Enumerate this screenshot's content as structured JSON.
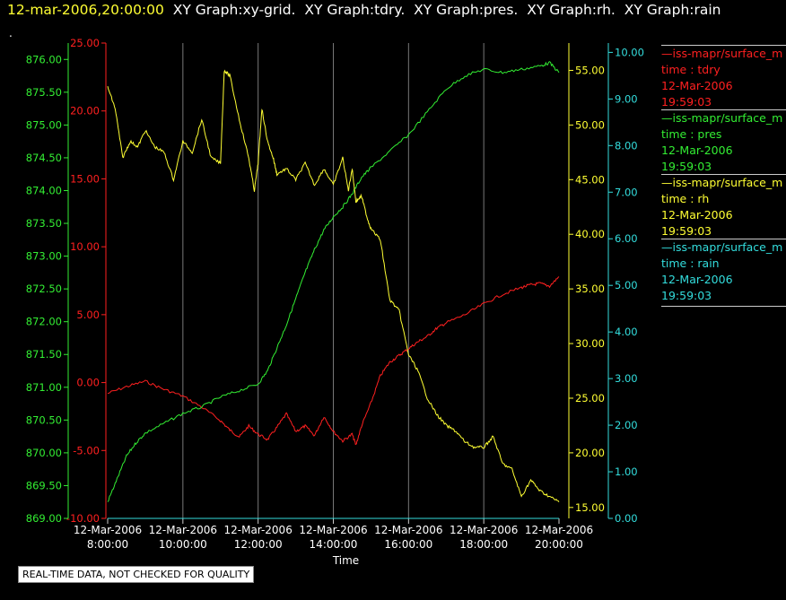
{
  "header": {
    "timestamp": "12-mar-2006,20:00:00",
    "titles": [
      "XY Graph:xy-grid.",
      "XY Graph:tdry.",
      "XY Graph:pres.",
      "XY Graph:rh.",
      "XY Graph:rain"
    ]
  },
  "dot": ".",
  "footer_note": "REAL-TIME DATA, NOT CHECKED FOR QUALITY",
  "legend": [
    {
      "source": "—iss-mapr/surface_m",
      "var": "time : tdry",
      "date": "12-Mar-2006",
      "time": "19:59:03",
      "color": "#ff2020"
    },
    {
      "source": "—iss-mapr/surface_m",
      "var": "time : pres",
      "date": "12-Mar-2006",
      "time": "19:59:03",
      "color": "#33ee33"
    },
    {
      "source": "—iss-mapr/surface_m",
      "var": "time : rh",
      "date": "12-Mar-2006",
      "time": "19:59:03",
      "color": "#ffff33"
    },
    {
      "source": "—iss-mapr/surface_m",
      "var": "time : rain",
      "date": "12-Mar-2006",
      "time": "19:59:03",
      "color": "#33dddd"
    }
  ],
  "chart_data": {
    "type": "line",
    "xlabel": "Time",
    "x_ticks": [
      {
        "date": "12-Mar-2006",
        "time": "8:00:00",
        "h": 8
      },
      {
        "date": "12-Mar-2006",
        "time": "10:00:00",
        "h": 10
      },
      {
        "date": "12-Mar-2006",
        "time": "12:00:00",
        "h": 12
      },
      {
        "date": "12-Mar-2006",
        "time": "14:00:00",
        "h": 14
      },
      {
        "date": "12-Mar-2006",
        "time": "16:00:00",
        "h": 16
      },
      {
        "date": "12-Mar-2006",
        "time": "18:00:00",
        "h": 18
      },
      {
        "date": "12-Mar-2006",
        "time": "20:00:00",
        "h": 20
      }
    ],
    "xlim": [
      8,
      20
    ],
    "grid": "vertical",
    "axes": {
      "pres": {
        "color": "#33ee33",
        "ylim": [
          869.0,
          876.25
        ],
        "ticks": [
          "869.00",
          "869.50",
          "870.00",
          "870.50",
          "871.00",
          "871.50",
          "872.00",
          "872.50",
          "873.00",
          "873.50",
          "874.00",
          "874.50",
          "875.00",
          "875.50",
          "876.00"
        ]
      },
      "tdry": {
        "color": "#ff2020",
        "ylim": [
          -10,
          25
        ],
        "ticks": [
          "-10.00",
          "-5.00",
          "0.00",
          "5.00",
          "10.00",
          "15.00",
          "20.00",
          "25.00"
        ]
      },
      "rh": {
        "color": "#ffff33",
        "ylim": [
          14.0,
          57.5
        ],
        "ticks": [
          "15.00",
          "20.00",
          "25.00",
          "30.00",
          "35.00",
          "40.00",
          "45.00",
          "50.00",
          "55.00"
        ]
      },
      "rain": {
        "color": "#33dddd",
        "ylim": [
          0,
          10.2
        ],
        "ticks": [
          "0.00",
          "1.00",
          "2.00",
          "3.00",
          "4.00",
          "5.00",
          "6.00",
          "7.00",
          "8.00",
          "9.00",
          "10.00"
        ]
      }
    },
    "series": [
      {
        "name": "tdry",
        "axis": "tdry",
        "color": "#ff2020",
        "x": [
          8,
          8.5,
          9,
          9.5,
          10,
          10.5,
          11,
          11.25,
          11.5,
          11.75,
          12,
          12.25,
          12.5,
          12.75,
          13,
          13.25,
          13.5,
          13.75,
          14,
          14.25,
          14.5,
          14.6,
          14.75,
          15,
          15.25,
          15.5,
          15.75,
          16,
          16.25,
          16.5,
          16.75,
          17,
          17.5,
          18,
          18.5,
          19,
          19.25,
          19.5,
          19.75,
          20
        ],
        "y": [
          -0.8,
          -0.3,
          0.1,
          -0.5,
          -1.0,
          -1.8,
          -2.8,
          -3.5,
          -4.0,
          -3.2,
          -3.8,
          -4.2,
          -3.3,
          -2.3,
          -3.6,
          -3.2,
          -3.9,
          -2.5,
          -3.6,
          -4.3,
          -3.8,
          -4.6,
          -3.2,
          -1.5,
          0.5,
          1.5,
          2.0,
          2.5,
          3.0,
          3.4,
          4.0,
          4.4,
          5.0,
          5.8,
          6.5,
          7.0,
          7.2,
          7.3,
          7.1,
          7.8
        ]
      },
      {
        "name": "pres",
        "axis": "pres",
        "color": "#33ee33",
        "x": [
          8,
          8.25,
          8.5,
          8.75,
          9,
          9.5,
          10,
          10.5,
          11,
          11.5,
          12,
          12.25,
          12.5,
          12.75,
          13,
          13.25,
          13.5,
          13.75,
          14,
          14.25,
          14.5,
          14.75,
          15,
          15.5,
          16,
          16.5,
          17,
          17.5,
          18,
          18.5,
          19,
          19.5,
          19.75,
          20
        ],
        "y": [
          869.25,
          869.6,
          869.95,
          870.15,
          870.3,
          870.45,
          870.6,
          870.7,
          870.85,
          870.95,
          871.05,
          871.25,
          871.6,
          871.95,
          872.35,
          872.75,
          873.1,
          873.4,
          873.6,
          873.75,
          873.95,
          874.2,
          874.35,
          874.6,
          874.85,
          875.2,
          875.55,
          875.75,
          875.85,
          875.8,
          875.85,
          875.9,
          875.95,
          875.8
        ]
      },
      {
        "name": "rh",
        "axis": "rh",
        "color": "#ffff33",
        "x": [
          8,
          8.2,
          8.4,
          8.6,
          8.8,
          9,
          9.25,
          9.5,
          9.75,
          10,
          10.25,
          10.5,
          10.75,
          11,
          11.1,
          11.25,
          11.5,
          11.75,
          11.9,
          12,
          12.1,
          12.25,
          12.4,
          12.5,
          12.75,
          13,
          13.25,
          13.5,
          13.75,
          14,
          14.25,
          14.4,
          14.5,
          14.6,
          14.75,
          14.9,
          15,
          15.25,
          15.5,
          15.75,
          16,
          16.25,
          16.5,
          16.75,
          17,
          17.25,
          17.5,
          17.75,
          18,
          18.25,
          18.5,
          18.75,
          19,
          19.25,
          19.5,
          19.75,
          20
        ],
        "y": [
          53.5,
          51.5,
          47.0,
          48.5,
          48.0,
          49.5,
          48.0,
          47.5,
          45.0,
          48.5,
          47.5,
          50.5,
          47.0,
          46.5,
          55.0,
          54.5,
          50.5,
          47.0,
          44.0,
          46.5,
          51.5,
          48.5,
          47.0,
          45.5,
          46.0,
          45.0,
          46.5,
          44.5,
          46.0,
          44.5,
          47.0,
          44.0,
          46.0,
          43.0,
          43.5,
          41.5,
          40.5,
          39.5,
          34.0,
          33.0,
          29.0,
          27.5,
          25.0,
          23.5,
          22.5,
          22.0,
          21.0,
          20.5,
          20.5,
          21.5,
          19.0,
          18.5,
          16.0,
          17.5,
          16.5,
          16.0,
          15.5
        ]
      },
      {
        "name": "rain",
        "axis": "rain",
        "color": "#33dddd",
        "x": [
          8,
          20
        ],
        "y": [
          0,
          0
        ]
      }
    ]
  }
}
